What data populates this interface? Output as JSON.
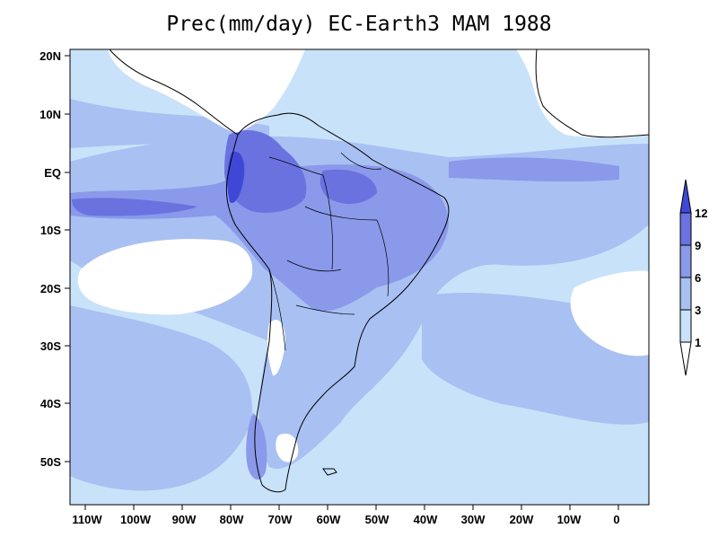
{
  "title": "Prec(mm/day) EC-Earth3 MAM 1988",
  "map": {
    "lat_ticks": [
      "20N",
      "10N",
      "EQ",
      "10S",
      "20S",
      "30S",
      "40S",
      "50S"
    ],
    "lon_ticks": [
      "110W",
      "100W",
      "90W",
      "80W",
      "70W",
      "60W",
      "50W",
      "40W",
      "30W",
      "20W",
      "10W",
      "0"
    ]
  },
  "colorbar": {
    "levels": [
      "1",
      "3",
      "6",
      "9",
      "12"
    ],
    "colors": [
      "#ffffff",
      "#c8e2fa",
      "#a9c0f2",
      "#8a99ea",
      "#6a72e0",
      "#3f48d6"
    ]
  }
}
